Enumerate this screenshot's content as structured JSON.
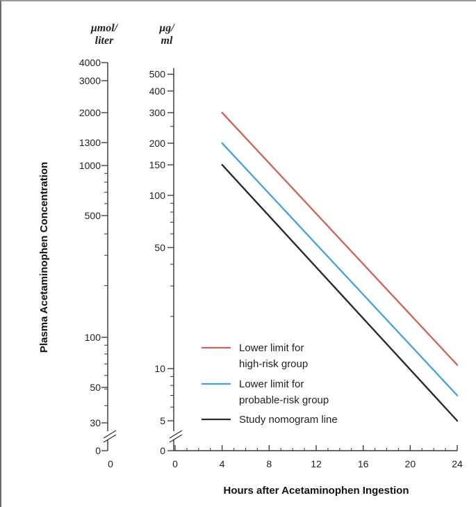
{
  "chart_data": {
    "type": "line",
    "title": "",
    "xlabel": "Hours after Acetaminophen Ingestion",
    "ylabel": "Plasma Acetaminophen Concentration",
    "x_axis": {
      "ticks": [
        0,
        4,
        8,
        12,
        16,
        20,
        24
      ],
      "tick_labels": [
        "0",
        "4",
        "8",
        "12",
        "16",
        "20",
        "24"
      ],
      "range": [
        0,
        24
      ]
    },
    "y_axis_left": {
      "unit_label_line1": "μmol/",
      "unit_label_line2": "liter",
      "scale": "log",
      "ticks": [
        4000,
        3000,
        2000,
        1300,
        1000,
        500,
        100,
        50,
        30
      ],
      "tick_labels": [
        "4000",
        "3000",
        "2000",
        "1300",
        "1000",
        "500",
        "100",
        "50",
        "30"
      ],
      "break_zero_label": "0",
      "break_x_label": "0"
    },
    "y_axis_right": {
      "unit_label_line1": "μg/",
      "unit_label_line2": "ml",
      "scale": "log",
      "range": [
        5,
        600
      ],
      "ticks": [
        500,
        400,
        300,
        200,
        150,
        100,
        50,
        10,
        5
      ],
      "tick_labels": [
        "500",
        "400",
        "300",
        "200",
        "150",
        "100",
        "50",
        "10",
        "5"
      ],
      "break_zero_label": "0"
    },
    "series": [
      {
        "name_line1": "Lower limit for",
        "name_line2": "high-risk group",
        "color": "#d0665a",
        "points": [
          {
            "x": 4,
            "y": 300
          },
          {
            "x": 24,
            "y": 10.5
          }
        ]
      },
      {
        "name_line1": "Lower limit for",
        "name_line2": "probable-risk group",
        "color": "#4aa3e0",
        "points": [
          {
            "x": 4,
            "y": 200
          },
          {
            "x": 24,
            "y": 7
          }
        ]
      },
      {
        "name_line1": "Study nomogram line",
        "name_line2": "",
        "color": "#2a2a2a",
        "points": [
          {
            "x": 4,
            "y": 150
          },
          {
            "x": 24,
            "y": 5
          }
        ]
      }
    ],
    "legend_position": "bottom-right"
  }
}
